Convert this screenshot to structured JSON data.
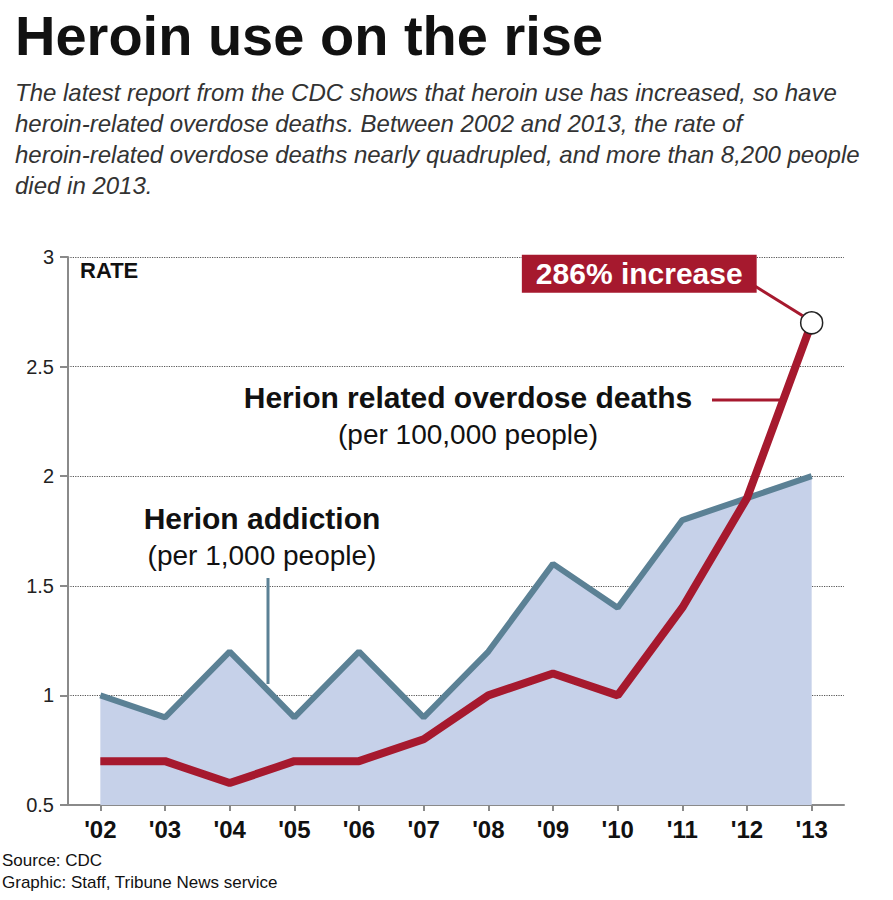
{
  "chart_data": {
    "type": "line",
    "title": "Heroin use on the rise",
    "subtitle": "The latest report from the CDC shows that heroin use has increased, so have heroin-related overdose deaths. Between 2002 and 2013, the rate of heroin-related overdose deaths nearly quadrupled, and more than 8,200 people died in 2013.",
    "y_label": "RATE",
    "categories": [
      "'02",
      "'03",
      "'04",
      "'05",
      "'06",
      "'07",
      "'08",
      "'09",
      "'10",
      "'11",
      "'12",
      "'13"
    ],
    "series": [
      {
        "name": "Herion addiction\n(per 1,000 people)",
        "color": "#5b8195",
        "values": [
          1.0,
          0.9,
          1.2,
          0.9,
          1.2,
          0.9,
          1.2,
          1.6,
          1.4,
          1.8,
          1.9,
          2.0
        ]
      },
      {
        "name": "Herion related overdose deaths\n(per 100,000 people)",
        "color": "#a6192e",
        "values": [
          0.7,
          0.7,
          0.6,
          0.7,
          0.7,
          0.8,
          1.0,
          1.1,
          1.0,
          1.4,
          1.9,
          2.7
        ]
      }
    ],
    "ylim": [
      0.5,
      3
    ],
    "yticks": [
      0.5,
      1,
      1.5,
      2,
      2.5,
      3
    ],
    "grid": true,
    "annotations": [
      {
        "text": "286% increase",
        "x": "'13",
        "y": 2.7
      }
    ],
    "footer": [
      "Source: CDC",
      "Graphic: Staff, Tribune News service"
    ]
  }
}
